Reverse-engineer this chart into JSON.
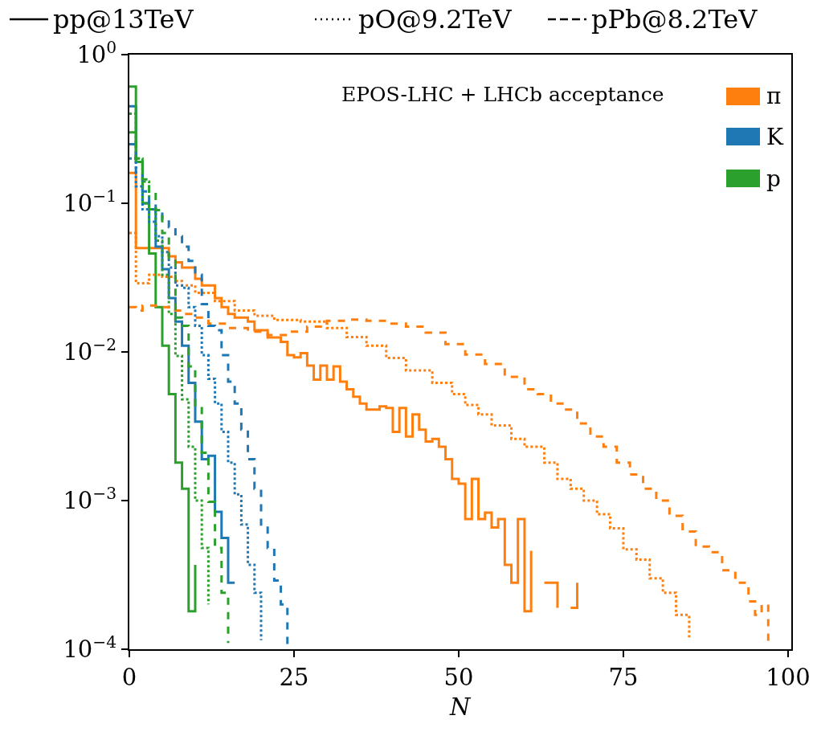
{
  "chart_data": {
    "type": "step",
    "xlabel": "N",
    "xlim": [
      0,
      100.5
    ],
    "xticks": [
      0,
      25,
      50,
      75,
      100
    ],
    "ylim": [
      0.0001,
      1
    ],
    "yticks": [
      {
        "value": 1,
        "label": "10$^{0}$"
      },
      {
        "value": 0.1,
        "label": "10$^{−1}$"
      },
      {
        "value": 0.01,
        "label": "10$^{−2}$"
      },
      {
        "value": 0.001,
        "label": "10$^{−3}$"
      },
      {
        "value": 0.0001,
        "label": "10$^{−4}$"
      }
    ],
    "log": "y",
    "grid": false,
    "annotations": [
      "pp@13TeV",
      "pO@9.2TeV",
      "pPb@8.2TeV",
      "EPOS-LHC + LHCb acceptance",
      "π",
      "K",
      "p"
    ],
    "series": [
      {
        "color": "#ff7f0e",
        "line_style": "solid",
        "x": [
          0,
          1,
          2,
          3,
          4,
          5,
          6,
          7,
          8,
          9,
          10,
          11,
          12,
          13,
          14,
          15,
          16,
          17,
          18,
          19,
          20,
          21,
          22,
          23,
          24,
          25,
          26,
          27,
          28,
          29,
          30,
          31,
          32,
          33,
          34,
          35,
          36,
          37,
          38,
          39,
          40,
          41,
          42,
          43,
          44,
          45,
          46,
          47,
          48,
          49,
          50,
          51,
          52,
          53,
          54,
          55,
          56,
          57,
          58,
          59,
          60,
          61,
          62,
          63,
          64,
          65,
          66,
          67,
          68
        ],
        "values": [
          0.16,
          0.05,
          0.05,
          0.05,
          0.05,
          0.05,
          0.044,
          0.04,
          0.037,
          0.037,
          0.031,
          0.028,
          0.028,
          0.023,
          0.02,
          0.018,
          0.017,
          0.017,
          0.016,
          0.014,
          0.014,
          0.0125,
          0.0125,
          0.0117,
          0.0095,
          0.0092,
          0.0098,
          0.0081,
          0.0065,
          0.0081,
          0.0065,
          0.008,
          0.0063,
          0.0056,
          0.005,
          0.0045,
          0.0041,
          0.0041,
          0.0043,
          0.0042,
          0.0029,
          0.0042,
          0.0027,
          0.0038,
          0.003,
          0.0025,
          0.0026,
          0.0023,
          0.0019,
          0.0014,
          0.0013,
          0.00075,
          0.0014,
          0.00075,
          0.00083,
          0.00066,
          0.00075,
          0.00037,
          0.00028,
          0.00075,
          0.00018,
          0.00046,
          null,
          0.00028,
          0.00028,
          0.00019,
          null,
          0.00019,
          0.00028
        ]
      },
      {
        "color": "#1f77b4",
        "line_style": "solid",
        "x": [
          0,
          1,
          2,
          3,
          4,
          5,
          6,
          7,
          8,
          9,
          10,
          11,
          12,
          13,
          14,
          15,
          16
        ],
        "values": [
          0.45,
          0.19,
          0.1,
          0.091,
          0.051,
          0.036,
          0.023,
          0.016,
          0.011,
          0.0062,
          0.0034,
          0.0019,
          0.002,
          0.00084,
          0.00056,
          0.00028,
          0.00028
        ]
      },
      {
        "color": "#2ca02c",
        "line_style": "solid",
        "x": [
          0,
          1,
          2,
          3,
          4,
          5,
          6,
          7,
          8,
          9,
          10
        ],
        "values": [
          0.61,
          0.19,
          0.1,
          0.046,
          0.02,
          0.011,
          0.0052,
          0.0018,
          0.0012,
          0.00018,
          0.00037
        ]
      },
      {
        "color": "#ff7f0e",
        "line_style": "dotted",
        "x": [
          0,
          1,
          3,
          5,
          7,
          8,
          10,
          13,
          16,
          19,
          22,
          26,
          30,
          33,
          36,
          39,
          42,
          46,
          49,
          51,
          53,
          55,
          58,
          60,
          63,
          65,
          67,
          69,
          71,
          73,
          75,
          77,
          79,
          81,
          83,
          85
        ],
        "values": [
          0.063,
          0.029,
          0.033,
          0.032,
          0.03,
          0.028,
          0.025,
          0.022,
          0.019,
          0.0175,
          0.0164,
          0.016,
          0.0145,
          0.0126,
          0.011,
          0.0091,
          0.0075,
          0.0062,
          0.0052,
          0.0044,
          0.0038,
          0.0032,
          0.0026,
          0.0023,
          0.0018,
          0.0014,
          0.0012,
          0.001,
          0.00081,
          0.00065,
          0.00047,
          0.0004,
          0.0003,
          0.00024,
          0.00017,
          0.00012
        ]
      },
      {
        "color": "#1f77b4",
        "line_style": "dotted",
        "x": [
          0,
          1,
          2,
          3,
          4,
          5,
          6,
          7,
          8,
          9,
          10,
          11,
          12,
          13,
          14,
          15,
          16,
          17,
          18,
          19,
          20
        ],
        "values": [
          0.2,
          0.13,
          0.091,
          0.075,
          0.06,
          0.047,
          0.037,
          0.028,
          0.027,
          0.02,
          0.015,
          0.0095,
          0.0066,
          0.0045,
          0.0029,
          0.0018,
          0.0011,
          0.00069,
          0.00037,
          0.00024,
          0.000115
        ]
      },
      {
        "color": "#2ca02c",
        "line_style": "dotted",
        "x": [
          0,
          1,
          2,
          3,
          4,
          5,
          6,
          7,
          8,
          9,
          10,
          11,
          12
        ],
        "values": [
          0.4,
          0.2,
          0.14,
          0.091,
          0.056,
          0.033,
          0.018,
          0.0094,
          0.0048,
          0.0023,
          0.001,
          0.00048,
          0.0002
        ]
      },
      {
        "color": "#ff7f0e",
        "line_style": "dashed",
        "x": [
          0,
          1,
          2,
          4,
          6,
          8,
          10,
          12,
          15,
          18,
          21,
          24,
          27,
          30,
          33,
          36,
          39,
          42,
          45,
          48,
          51,
          54,
          57,
          60,
          62,
          64,
          66,
          68,
          70,
          72,
          74,
          76,
          78,
          80,
          82,
          84,
          86,
          88,
          90,
          92,
          94,
          95,
          96,
          97
        ],
        "values": [
          0.02,
          0.019,
          0.0205,
          0.02,
          0.019,
          0.018,
          0.017,
          0.0155,
          0.0145,
          0.0137,
          0.013,
          0.0137,
          0.0148,
          0.0162,
          0.0165,
          0.0162,
          0.0155,
          0.0148,
          0.0135,
          0.0113,
          0.0096,
          0.0083,
          0.0068,
          0.0056,
          0.0052,
          0.0045,
          0.0041,
          0.0033,
          0.0027,
          0.0023,
          0.0018,
          0.0015,
          0.0012,
          0.001,
          0.00079,
          0.00062,
          0.00049,
          0.00045,
          0.00034,
          0.00028,
          0.00021,
          0.00017,
          0.0002,
          0.00011
        ]
      },
      {
        "color": "#1f77b4",
        "line_style": "dashed",
        "x": [
          0,
          1,
          2,
          3,
          4,
          5,
          6,
          7,
          8,
          9,
          10,
          11,
          12,
          13,
          14,
          15,
          16,
          17,
          18,
          19,
          20,
          21,
          22,
          23,
          24
        ],
        "values": [
          0.25,
          0.16,
          0.12,
          0.1,
          0.088,
          0.078,
          0.069,
          0.06,
          0.051,
          0.041,
          0.033,
          0.021,
          0.015,
          0.014,
          0.0095,
          0.0063,
          0.0045,
          0.003,
          0.0019,
          0.0012,
          0.00069,
          0.00048,
          0.00029,
          0.0002,
          0.000104
        ]
      },
      {
        "color": "#2ca02c",
        "line_style": "dashed",
        "x": [
          0,
          1,
          2,
          3,
          4,
          5,
          6,
          7,
          8,
          9,
          10,
          11,
          12,
          13,
          14,
          15
        ],
        "values": [
          0.3,
          0.2,
          0.145,
          0.12,
          0.09,
          0.063,
          0.042,
          0.017,
          0.015,
          0.008,
          0.0043,
          0.0021,
          0.00098,
          0.00048,
          0.00024,
          0.00011
        ]
      }
    ]
  }
}
